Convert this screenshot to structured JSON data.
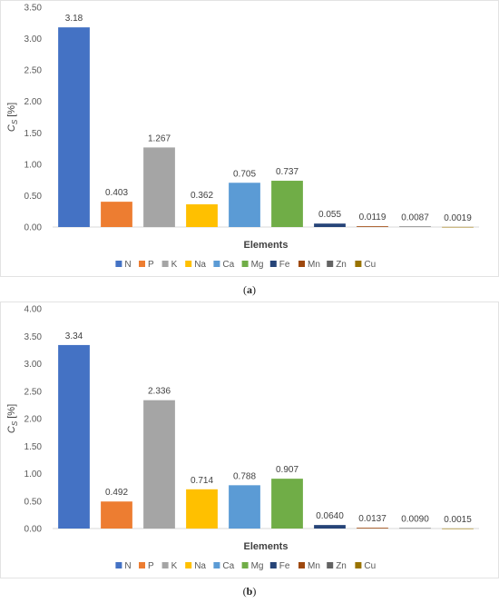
{
  "colors": {
    "N": "#4472c4",
    "P": "#ed7d31",
    "K": "#a5a5a5",
    "Na": "#ffc000",
    "Ca": "#5b9bd5",
    "Mg": "#70ad47",
    "Fe": "#264478",
    "Mn": "#9e480e",
    "Zn": "#636363",
    "Cu": "#997300"
  },
  "chart_data": [
    {
      "type": "bar",
      "categories": [
        "N",
        "P",
        "K",
        "Na",
        "Ca",
        "Mg",
        "Fe",
        "Mn",
        "Zn",
        "Cu"
      ],
      "values": [
        3.18,
        0.403,
        1.267,
        0.362,
        0.705,
        0.737,
        0.055,
        0.0119,
        0.0087,
        0.0019
      ],
      "data_labels": [
        "3.18",
        "0.403",
        "1.267",
        "0.362",
        "0.705",
        "0.737",
        "0.055",
        "0.0119",
        "0.0087",
        "0.0019"
      ],
      "xlabel": "Elements",
      "ylabel": "C_S [%]",
      "ylim": [
        0,
        3.5
      ],
      "yticks": [
        "0.00",
        "0.50",
        "1.00",
        "1.50",
        "2.00",
        "2.50",
        "3.00",
        "3.50"
      ],
      "grid": false,
      "legend": "bottom",
      "caption_letter": "a"
    },
    {
      "type": "bar",
      "categories": [
        "N",
        "P",
        "K",
        "Na",
        "Ca",
        "Mg",
        "Fe",
        "Mn",
        "Zn",
        "Cu"
      ],
      "values": [
        3.34,
        0.492,
        2.336,
        0.714,
        0.788,
        0.907,
        0.064,
        0.0137,
        0.009,
        0.0015
      ],
      "data_labels": [
        "3.34",
        "0.492",
        "2.336",
        "0.714",
        "0.788",
        "0.907",
        "0.0640",
        "0.0137",
        "0.0090",
        "0.0015"
      ],
      "xlabel": "Elements",
      "ylabel": "C_S [%]",
      "ylim": [
        0,
        4
      ],
      "yticks": [
        "0.00",
        "0.50",
        "1.00",
        "1.50",
        "2.00",
        "2.50",
        "3.00",
        "3.50",
        "4.00"
      ],
      "grid": false,
      "legend": "bottom",
      "caption_letter": "b"
    }
  ]
}
